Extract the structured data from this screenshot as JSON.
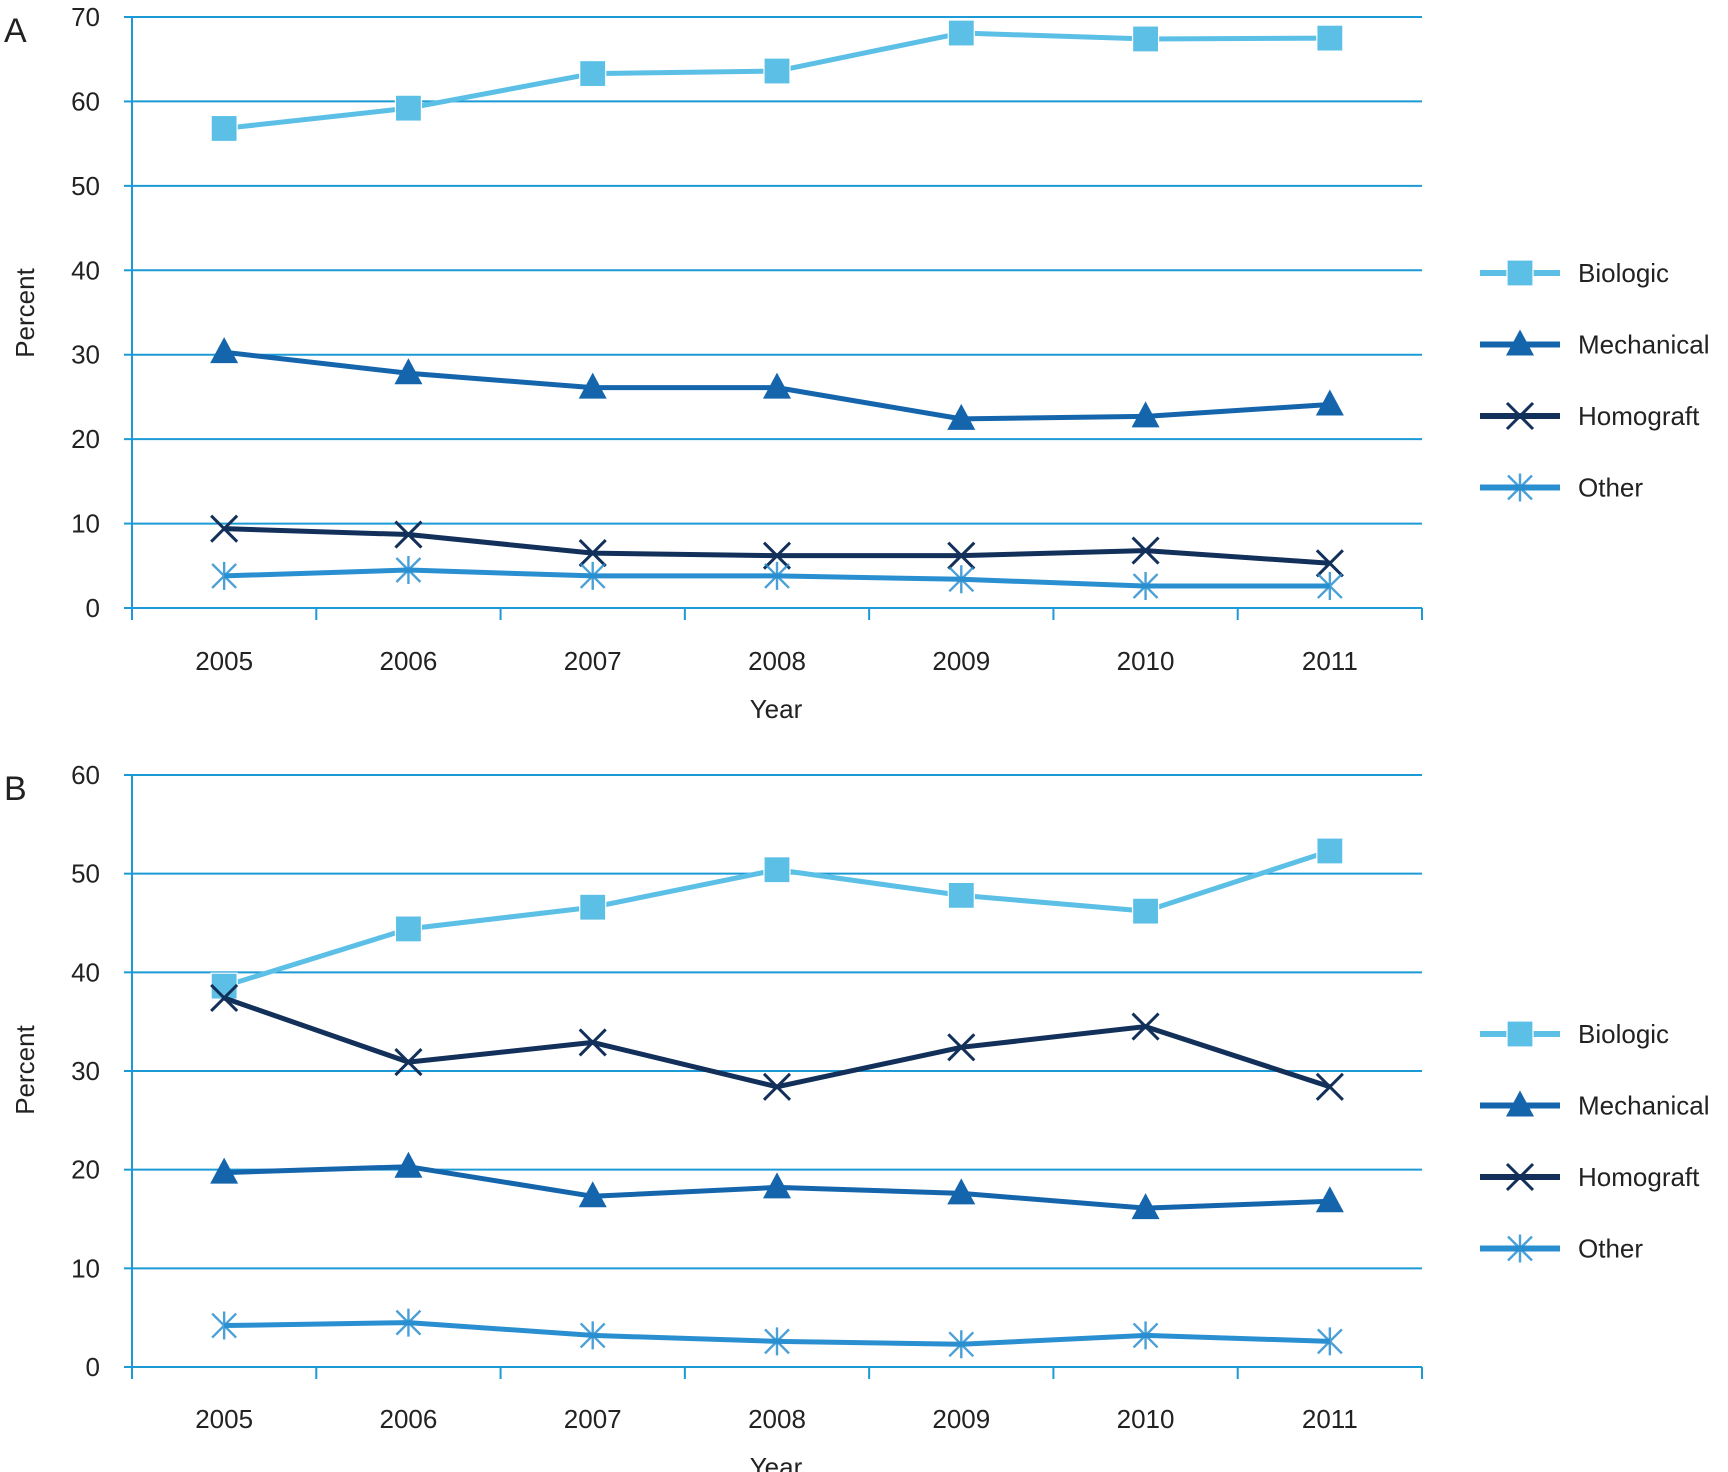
{
  "colors": {
    "Biologic": "#5bbfe6",
    "Mechanical": "#1565ad",
    "Homograft": "#12305a",
    "Other": "#2a8fd0",
    "grid": "#1b9ad6",
    "axis": "#1b9ad6"
  },
  "chart_data": [
    {
      "panel_label": "A",
      "type": "line",
      "title": "",
      "xlabel": "Year",
      "ylabel": "Percent",
      "categories": [
        "2005",
        "2006",
        "2007",
        "2008",
        "2009",
        "2010",
        "2011"
      ],
      "ylim": [
        0,
        70
      ],
      "yticks": [
        0,
        10,
        20,
        30,
        40,
        50,
        60,
        70
      ],
      "grid": true,
      "legend_position": "right",
      "series": [
        {
          "name": "Biologic",
          "marker": "square",
          "values": [
            56.8,
            59.2,
            63.3,
            63.6,
            68.1,
            67.4,
            67.5
          ]
        },
        {
          "name": "Mechanical",
          "marker": "triangle",
          "values": [
            30.3,
            27.8,
            26.1,
            26.1,
            22.4,
            22.7,
            24.1
          ]
        },
        {
          "name": "Homograft",
          "marker": "x",
          "values": [
            9.4,
            8.7,
            6.5,
            6.2,
            6.2,
            6.8,
            5.3
          ]
        },
        {
          "name": "Other",
          "marker": "asterisk",
          "values": [
            3.8,
            4.5,
            3.8,
            3.8,
            3.4,
            2.6,
            2.6
          ]
        }
      ]
    },
    {
      "panel_label": "B",
      "type": "line",
      "title": "",
      "xlabel": "Year",
      "ylabel": "Percent",
      "categories": [
        "2005",
        "2006",
        "2007",
        "2008",
        "2009",
        "2010",
        "2011"
      ],
      "ylim": [
        0,
        60
      ],
      "yticks": [
        0,
        10,
        20,
        30,
        40,
        50,
        60
      ],
      "grid": true,
      "legend_position": "right",
      "series": [
        {
          "name": "Biologic",
          "marker": "square",
          "values": [
            38.6,
            44.4,
            46.6,
            50.4,
            47.8,
            46.2,
            52.3
          ]
        },
        {
          "name": "Mechanical",
          "marker": "triangle",
          "values": [
            19.7,
            20.3,
            17.3,
            18.2,
            17.6,
            16.1,
            16.8
          ]
        },
        {
          "name": "Homograft",
          "marker": "x",
          "values": [
            37.4,
            30.9,
            32.9,
            28.4,
            32.4,
            34.5,
            28.4
          ]
        },
        {
          "name": "Other",
          "marker": "asterisk",
          "values": [
            4.2,
            4.5,
            3.2,
            2.6,
            2.3,
            3.2,
            2.6
          ]
        }
      ]
    }
  ]
}
